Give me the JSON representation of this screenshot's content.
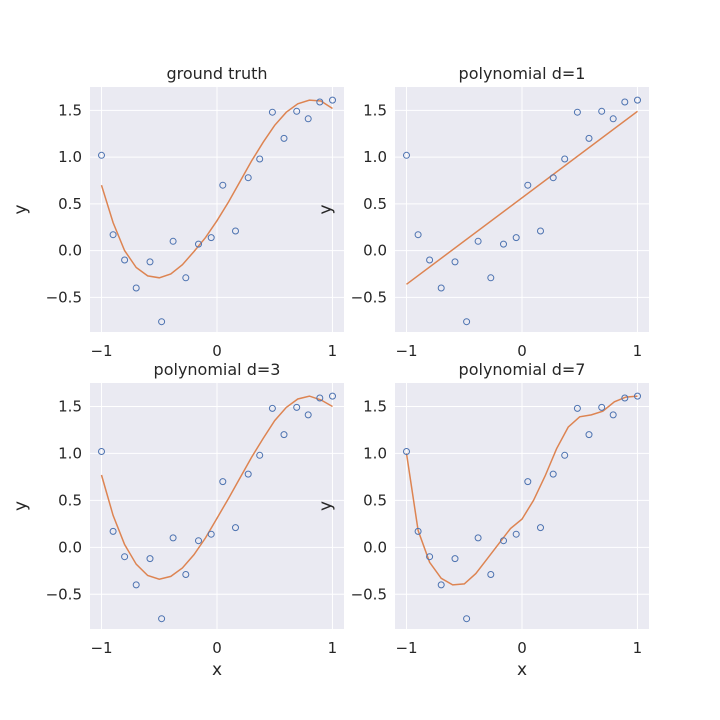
{
  "figure": {
    "x_label": "x",
    "y_label": "y"
  },
  "chart_data": [
    {
      "type": "scatter",
      "title": "ground truth",
      "xlabel": "",
      "ylabel": "y",
      "xlim": [
        -1.1,
        1.1
      ],
      "ylim": [
        -0.87,
        1.75
      ],
      "xticks": [
        -1,
        0,
        1
      ],
      "yticks": [
        -0.5,
        0.0,
        0.5,
        1.0,
        1.5
      ],
      "grid": true,
      "points": {
        "x": [
          -1.0,
          -0.9,
          -0.8,
          -0.7,
          -0.58,
          -0.48,
          -0.38,
          -0.27,
          -0.16,
          -0.05,
          0.05,
          0.16,
          0.27,
          0.37,
          0.48,
          0.58,
          0.69,
          0.79,
          0.89,
          1.0
        ],
        "y": [
          1.02,
          0.17,
          -0.1,
          -0.4,
          -0.12,
          -0.76,
          0.1,
          -0.29,
          0.07,
          0.14,
          0.7,
          0.21,
          0.78,
          0.98,
          1.48,
          1.2,
          1.49,
          1.41,
          1.59,
          1.61
        ]
      },
      "curve": {
        "x": [
          -1.0,
          -0.9,
          -0.8,
          -0.7,
          -0.6,
          -0.5,
          -0.4,
          -0.3,
          -0.2,
          -0.1,
          0.0,
          0.1,
          0.2,
          0.3,
          0.4,
          0.5,
          0.6,
          0.7,
          0.8,
          0.9,
          1.0
        ],
        "y": [
          0.7,
          0.3,
          0.0,
          -0.18,
          -0.27,
          -0.29,
          -0.25,
          -0.15,
          -0.01,
          0.14,
          0.32,
          0.52,
          0.74,
          0.96,
          1.16,
          1.34,
          1.48,
          1.57,
          1.61,
          1.6,
          1.52
        ]
      }
    },
    {
      "type": "scatter",
      "title": "polynomial d=1",
      "xlabel": "",
      "ylabel": "y",
      "xlim": [
        -1.1,
        1.1
      ],
      "ylim": [
        -0.87,
        1.75
      ],
      "xticks": [
        -1,
        0,
        1
      ],
      "yticks": [
        -0.5,
        0.0,
        0.5,
        1.0,
        1.5
      ],
      "grid": true,
      "points": {
        "x": [
          -1.0,
          -0.9,
          -0.8,
          -0.7,
          -0.58,
          -0.48,
          -0.38,
          -0.27,
          -0.16,
          -0.05,
          0.05,
          0.16,
          0.27,
          0.37,
          0.48,
          0.58,
          0.69,
          0.79,
          0.89,
          1.0
        ],
        "y": [
          1.02,
          0.17,
          -0.1,
          -0.4,
          -0.12,
          -0.76,
          0.1,
          -0.29,
          0.07,
          0.14,
          0.7,
          0.21,
          0.78,
          0.98,
          1.48,
          1.2,
          1.49,
          1.41,
          1.59,
          1.61
        ]
      },
      "curve": {
        "x": [
          -1.0,
          1.0
        ],
        "y": [
          -0.36,
          1.49
        ]
      }
    },
    {
      "type": "scatter",
      "title": "polynomial d=3",
      "xlabel": "x",
      "ylabel": "y",
      "xlim": [
        -1.1,
        1.1
      ],
      "ylim": [
        -0.87,
        1.75
      ],
      "xticks": [
        -1,
        0,
        1
      ],
      "yticks": [
        -0.5,
        0.0,
        0.5,
        1.0,
        1.5
      ],
      "grid": true,
      "points": {
        "x": [
          -1.0,
          -0.9,
          -0.8,
          -0.7,
          -0.58,
          -0.48,
          -0.38,
          -0.27,
          -0.16,
          -0.05,
          0.05,
          0.16,
          0.27,
          0.37,
          0.48,
          0.58,
          0.69,
          0.79,
          0.89,
          1.0
        ],
        "y": [
          1.02,
          0.17,
          -0.1,
          -0.4,
          -0.12,
          -0.76,
          0.1,
          -0.29,
          0.07,
          0.14,
          0.7,
          0.21,
          0.78,
          0.98,
          1.48,
          1.2,
          1.49,
          1.41,
          1.59,
          1.61
        ]
      },
      "curve": {
        "x": [
          -1.0,
          -0.9,
          -0.8,
          -0.7,
          -0.6,
          -0.5,
          -0.4,
          -0.3,
          -0.2,
          -0.1,
          0.0,
          0.1,
          0.2,
          0.3,
          0.4,
          0.5,
          0.6,
          0.7,
          0.8,
          0.9,
          1.0
        ],
        "y": [
          0.77,
          0.34,
          0.03,
          -0.18,
          -0.3,
          -0.34,
          -0.31,
          -0.22,
          -0.08,
          0.1,
          0.31,
          0.52,
          0.74,
          0.96,
          1.16,
          1.35,
          1.49,
          1.58,
          1.61,
          1.57,
          1.5
        ]
      }
    },
    {
      "type": "scatter",
      "title": "polynomial d=7",
      "xlabel": "x",
      "ylabel": "y",
      "xlim": [
        -1.1,
        1.1
      ],
      "ylim": [
        -0.87,
        1.75
      ],
      "xticks": [
        -1,
        0,
        1
      ],
      "yticks": [
        -0.5,
        0.0,
        0.5,
        1.0,
        1.5
      ],
      "grid": true,
      "points": {
        "x": [
          -1.0,
          -0.9,
          -0.8,
          -0.7,
          -0.58,
          -0.48,
          -0.38,
          -0.27,
          -0.16,
          -0.05,
          0.05,
          0.16,
          0.27,
          0.37,
          0.48,
          0.58,
          0.69,
          0.79,
          0.89,
          1.0
        ],
        "y": [
          1.02,
          0.17,
          -0.1,
          -0.4,
          -0.12,
          -0.76,
          0.1,
          -0.29,
          0.07,
          0.14,
          0.7,
          0.21,
          0.78,
          0.98,
          1.48,
          1.2,
          1.49,
          1.41,
          1.59,
          1.61
        ]
      },
      "curve": {
        "x": [
          -1.0,
          -0.9,
          -0.8,
          -0.7,
          -0.6,
          -0.5,
          -0.4,
          -0.3,
          -0.2,
          -0.1,
          0.0,
          0.1,
          0.2,
          0.3,
          0.4,
          0.5,
          0.6,
          0.7,
          0.8,
          0.9,
          1.0
        ],
        "y": [
          1.0,
          0.18,
          -0.16,
          -0.33,
          -0.4,
          -0.39,
          -0.28,
          -0.12,
          0.04,
          0.2,
          0.3,
          0.5,
          0.76,
          1.05,
          1.28,
          1.39,
          1.41,
          1.45,
          1.55,
          1.6,
          1.61
        ]
      }
    }
  ]
}
